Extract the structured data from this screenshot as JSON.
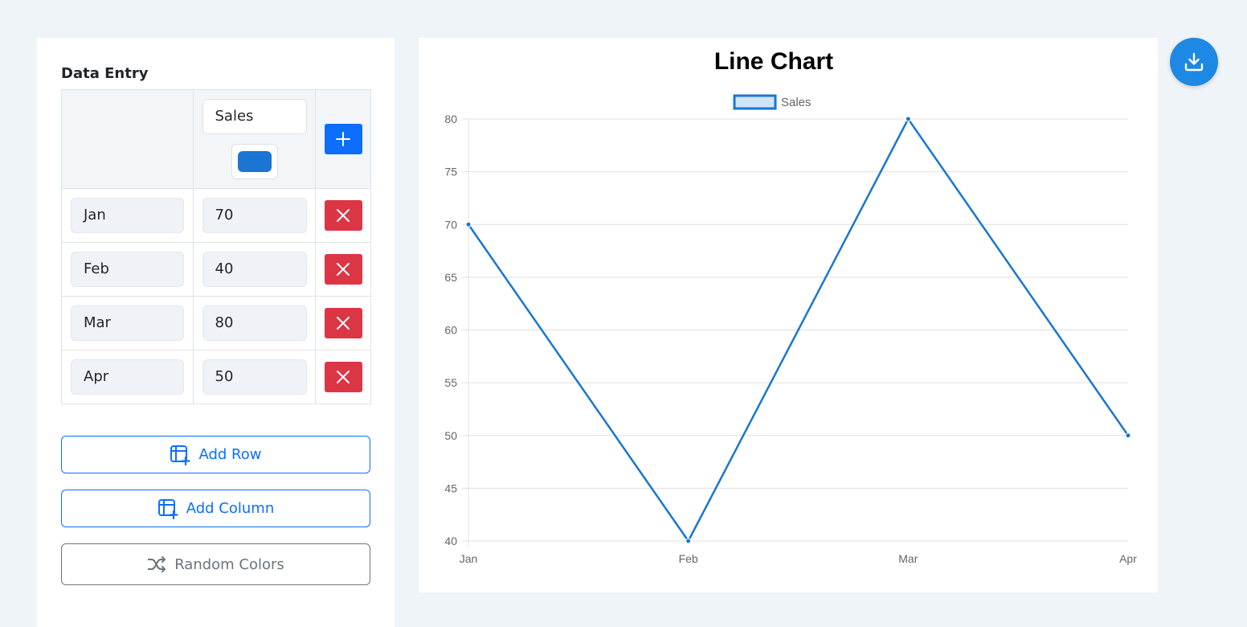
{
  "panel": {
    "title": "Data Entry",
    "series": [
      {
        "name": "Sales",
        "color": "#1976d2"
      }
    ],
    "rows": [
      {
        "label": "Jan",
        "value": "70"
      },
      {
        "label": "Feb",
        "value": "40"
      },
      {
        "label": "Mar",
        "value": "80"
      },
      {
        "label": "Apr",
        "value": "50"
      }
    ],
    "buttons": {
      "add_row": "Add Row",
      "add_column": "Add Column",
      "random_colors": "Random Colors"
    }
  },
  "colors": {
    "primary": "#0d6efd",
    "danger": "#dc3545",
    "line": "#1976d2",
    "fab": "#1e88e5"
  },
  "icons": {
    "add_column_header": "plus-icon",
    "delete_row": "x-icon",
    "add_row": "table-add-icon",
    "add_column": "table-add-icon",
    "random_colors": "shuffle-icon",
    "download": "download-icon"
  },
  "chart_data": {
    "type": "line",
    "title": "Line Chart",
    "categories": [
      "Jan",
      "Feb",
      "Mar",
      "Apr"
    ],
    "series": [
      {
        "name": "Sales",
        "values": [
          70,
          40,
          80,
          50
        ],
        "color": "#1976d2"
      }
    ],
    "ylim": [
      40,
      80
    ],
    "yticks": [
      40,
      45,
      50,
      55,
      60,
      65,
      70,
      75,
      80
    ],
    "legend": "top",
    "grid": true
  }
}
